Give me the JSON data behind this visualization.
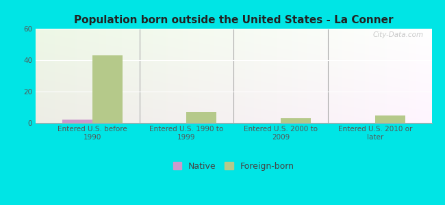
{
  "title": "Population born outside the United States - La Conner",
  "categories": [
    "Entered U.S. before\n1990",
    "Entered U.S. 1990 to\n1999",
    "Entered U.S. 2000 to\n2009",
    "Entered U.S. 2010 or\nlater"
  ],
  "native_values": [
    2,
    0,
    0,
    0
  ],
  "foreign_values": [
    43,
    7,
    3,
    5
  ],
  "native_color": "#cc99cc",
  "foreign_color": "#b5c98a",
  "ylim": [
    0,
    60
  ],
  "yticks": [
    0,
    20,
    40,
    60
  ],
  "background_color": "#00e5e5",
  "plot_bg_color": "#eaf5e8",
  "bar_width": 0.32,
  "title_fontsize": 11,
  "tick_fontsize": 7.5,
  "legend_fontsize": 9,
  "watermark": "City-Data.com"
}
